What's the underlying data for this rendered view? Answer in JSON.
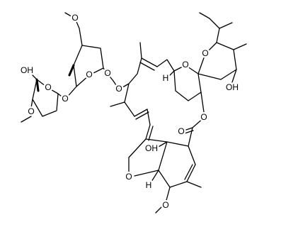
{
  "labels": [
    "OH",
    "O",
    "O",
    "O",
    "O",
    "O",
    "O",
    "O",
    "H",
    "O",
    "O",
    "OH",
    "O",
    "O",
    "OH",
    "O",
    "H",
    "O"
  ]
}
